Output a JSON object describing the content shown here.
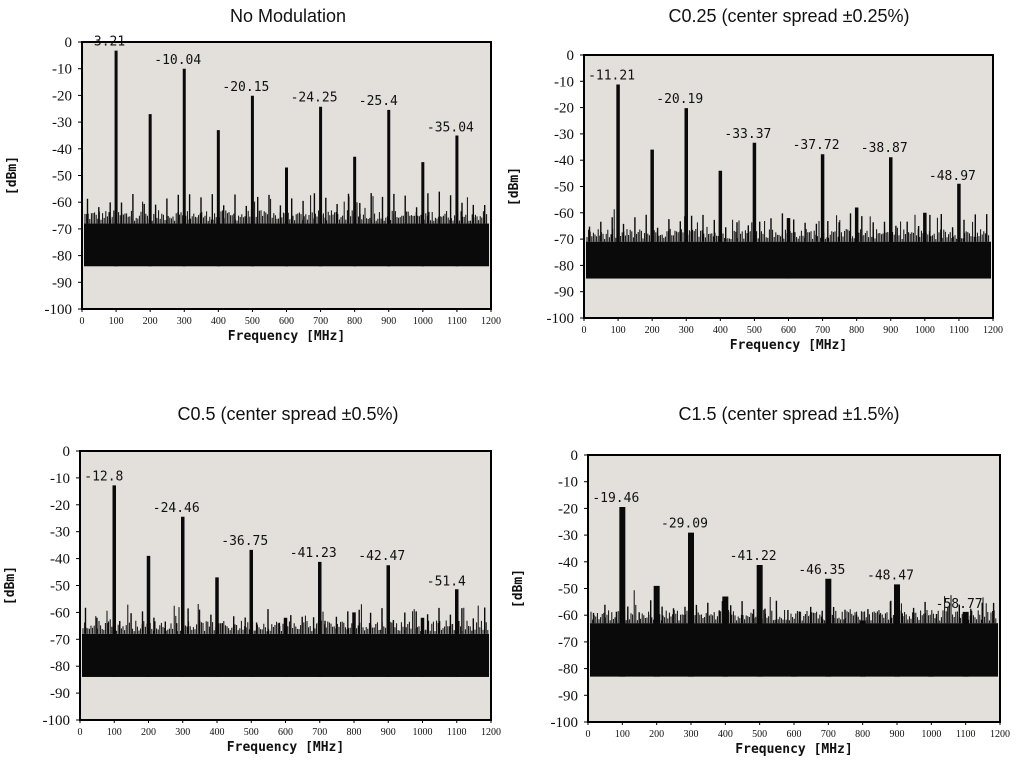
{
  "colors": {
    "plot_background": "#e3e0dc",
    "trace": "#0a0a0a",
    "frame": "#000000",
    "page_background": "#ffffff"
  },
  "chart_data": [
    {
      "type": "line",
      "title": "No Modulation",
      "xlabel": "Frequency [MHz]",
      "ylabel": "[dBm]",
      "xlim": [
        0,
        1200
      ],
      "ylim": [
        -100,
        0
      ],
      "x_ticks": [
        "0",
        "100",
        "200",
        "300",
        "400",
        "500",
        "600",
        "700",
        "800",
        "900",
        "1000",
        "1100",
        "1200"
      ],
      "y_ticks": [
        "0",
        "-10",
        "-20",
        "-30",
        "-40",
        "-50",
        "-60",
        "-70",
        "-80",
        "-90",
        "-100"
      ],
      "noise_floor": [
        -84,
        -68
      ],
      "peaks": [
        {
          "x": 100,
          "y": -3.21,
          "label": "-3.21"
        },
        {
          "x": 200,
          "y": -27
        },
        {
          "x": 300,
          "y": -10.04,
          "label": "-10.04"
        },
        {
          "x": 400,
          "y": -33
        },
        {
          "x": 500,
          "y": -20.15,
          "label": "-20.15"
        },
        {
          "x": 600,
          "y": -47
        },
        {
          "x": 700,
          "y": -24.25,
          "label": "-24.25"
        },
        {
          "x": 800,
          "y": -43
        },
        {
          "x": 900,
          "y": -25.4,
          "label": "-25.4"
        },
        {
          "x": 1000,
          "y": -45
        },
        {
          "x": 1100,
          "y": -35.04,
          "label": "-35.04"
        }
      ]
    },
    {
      "type": "line",
      "title": "C0.25 (center spread ±0.25%)",
      "xlabel": "Frequency [MHz]",
      "ylabel": "[dBm]",
      "xlim": [
        0,
        1200
      ],
      "ylim": [
        -100,
        0
      ],
      "x_ticks": [
        "0",
        "100",
        "200",
        "300",
        "400",
        "500",
        "600",
        "700",
        "800",
        "900",
        "1000",
        "1100",
        "1200"
      ],
      "y_ticks": [
        "0",
        "-10",
        "-20",
        "-30",
        "-40",
        "-50",
        "-60",
        "-70",
        "-80",
        "-90",
        "-100"
      ],
      "noise_floor": [
        -85,
        -71
      ],
      "peaks": [
        {
          "x": 100,
          "y": -11.21,
          "label": "-11.21"
        },
        {
          "x": 200,
          "y": -36
        },
        {
          "x": 300,
          "y": -20.19,
          "label": "-20.19"
        },
        {
          "x": 400,
          "y": -44
        },
        {
          "x": 500,
          "y": -33.37,
          "label": "-33.37"
        },
        {
          "x": 600,
          "y": -62
        },
        {
          "x": 700,
          "y": -37.72,
          "label": "-37.72"
        },
        {
          "x": 800,
          "y": -58
        },
        {
          "x": 900,
          "y": -38.87,
          "label": "-38.87"
        },
        {
          "x": 1000,
          "y": -60
        },
        {
          "x": 1100,
          "y": -48.97,
          "label": "-48.97"
        }
      ]
    },
    {
      "type": "line",
      "title": "C0.5 (center spread ±0.5%)",
      "xlabel": "Frequency [MHz]",
      "ylabel": "[dBm]",
      "xlim": [
        0,
        1200
      ],
      "ylim": [
        -100,
        0
      ],
      "x_ticks": [
        "0",
        "100",
        "200",
        "300",
        "400",
        "500",
        "600",
        "700",
        "800",
        "900",
        "1000",
        "1100",
        "1200"
      ],
      "y_ticks": [
        "0",
        "-10",
        "-20",
        "-30",
        "-40",
        "-50",
        "-60",
        "-70",
        "-80",
        "-90",
        "-100"
      ],
      "noise_floor": [
        -84,
        -68
      ],
      "peaks": [
        {
          "x": 100,
          "y": -12.8,
          "label": "-12.8"
        },
        {
          "x": 200,
          "y": -39
        },
        {
          "x": 300,
          "y": -24.46,
          "label": "-24.46"
        },
        {
          "x": 400,
          "y": -47
        },
        {
          "x": 500,
          "y": -36.75,
          "label": "-36.75"
        },
        {
          "x": 600,
          "y": -62
        },
        {
          "x": 700,
          "y": -41.23,
          "label": "-41.23"
        },
        {
          "x": 800,
          "y": -60
        },
        {
          "x": 900,
          "y": -42.47,
          "label": "-42.47"
        },
        {
          "x": 1000,
          "y": -62
        },
        {
          "x": 1100,
          "y": -51.4,
          "label": "-51.4"
        }
      ]
    },
    {
      "type": "line",
      "title": "C1.5 (center spread ±1.5%)",
      "xlabel": "Frequency [MHz]",
      "ylabel": "[dBm]",
      "xlim": [
        0,
        1200
      ],
      "ylim": [
        -100,
        0
      ],
      "x_ticks": [
        "0",
        "100",
        "200",
        "300",
        "400",
        "500",
        "600",
        "700",
        "800",
        "900",
        "1000",
        "1100",
        "1200"
      ],
      "y_ticks": [
        "0",
        "-10",
        "-20",
        "-30",
        "-40",
        "-50",
        "-60",
        "-70",
        "-80",
        "-90",
        "-100"
      ],
      "noise_floor": [
        -83,
        -63
      ],
      "peaks": [
        {
          "x": 100,
          "y": -19.46,
          "label": "-19.46"
        },
        {
          "x": 200,
          "y": -49
        },
        {
          "x": 300,
          "y": -29.09,
          "label": "-29.09"
        },
        {
          "x": 400,
          "y": -53
        },
        {
          "x": 500,
          "y": -41.22,
          "label": "-41.22"
        },
        {
          "x": 600,
          "y": -65
        },
        {
          "x": 700,
          "y": -46.35,
          "label": "-46.35"
        },
        {
          "x": 800,
          "y": -62
        },
        {
          "x": 900,
          "y": -48.47,
          "label": "-48.47"
        },
        {
          "x": 1000,
          "y": -65
        },
        {
          "x": 1100,
          "y": -58.77,
          "label": "-58.77"
        }
      ]
    }
  ]
}
